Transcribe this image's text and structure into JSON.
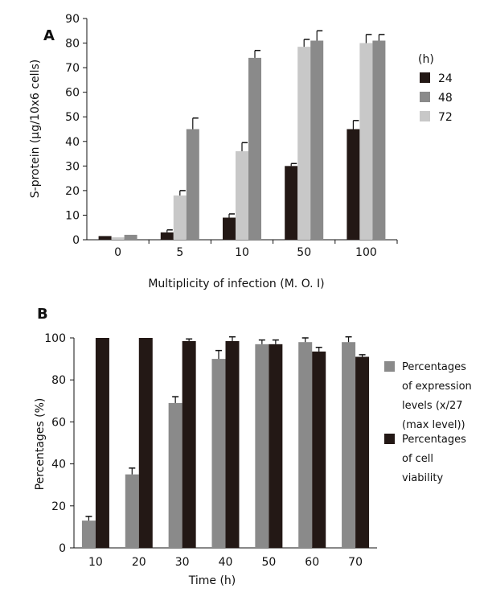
{
  "chart_data": [
    {
      "type": "bar",
      "panel_label": "A",
      "ylabel": "S-protein (μg/10x6 cells)",
      "xlabel": "Multiplicity of infection (M. O. I)",
      "ylim": [
        0,
        90
      ],
      "yticks": [
        0,
        10,
        20,
        30,
        40,
        50,
        60,
        70,
        80,
        90
      ],
      "categories": [
        "0",
        "5",
        "10",
        "50",
        "100"
      ],
      "legend_title": "(h)",
      "legend_position": "right",
      "series": [
        {
          "name": "24",
          "color": "#231815",
          "values": [
            1.5,
            3,
            9,
            30,
            45
          ],
          "errors": [
            0,
            1,
            1.5,
            1,
            3.5
          ]
        },
        {
          "name": "72",
          "color": "#c8c8c8",
          "values": [
            1,
            18,
            36,
            78.5,
            80
          ],
          "errors": [
            0,
            2,
            3.5,
            3,
            3.5
          ]
        },
        {
          "name": "48",
          "color": "#8a8a8a",
          "values": [
            2,
            45,
            74,
            81,
            81
          ],
          "errors": [
            0,
            4.5,
            3,
            4,
            2.5
          ]
        }
      ],
      "legend_order": [
        "24",
        "48",
        "72"
      ]
    },
    {
      "type": "bar",
      "panel_label": "B",
      "ylabel": "Percentages (%)",
      "xlabel": "Time (h)",
      "ylim": [
        0,
        100
      ],
      "yticks": [
        0,
        20,
        40,
        60,
        80,
        100
      ],
      "categories": [
        "10",
        "20",
        "30",
        "40",
        "50",
        "60",
        "70"
      ],
      "legend_position": "right",
      "series": [
        {
          "name_lines": [
            "Percentages",
            "of expression",
            "levels (x/27",
            "(max level))"
          ],
          "color": "#8a8a8a",
          "values": [
            13,
            35,
            69,
            90,
            97,
            98,
            98
          ],
          "errors": [
            2,
            3,
            3,
            4,
            2,
            2,
            2.5
          ]
        },
        {
          "name_lines": [
            "Percentages",
            "of cell",
            "viability"
          ],
          "color": "#231815",
          "values": [
            100,
            100,
            98.5,
            98.5,
            97,
            93.5,
            91
          ],
          "errors": [
            0,
            0,
            1,
            2,
            2,
            2,
            1
          ]
        }
      ]
    }
  ]
}
